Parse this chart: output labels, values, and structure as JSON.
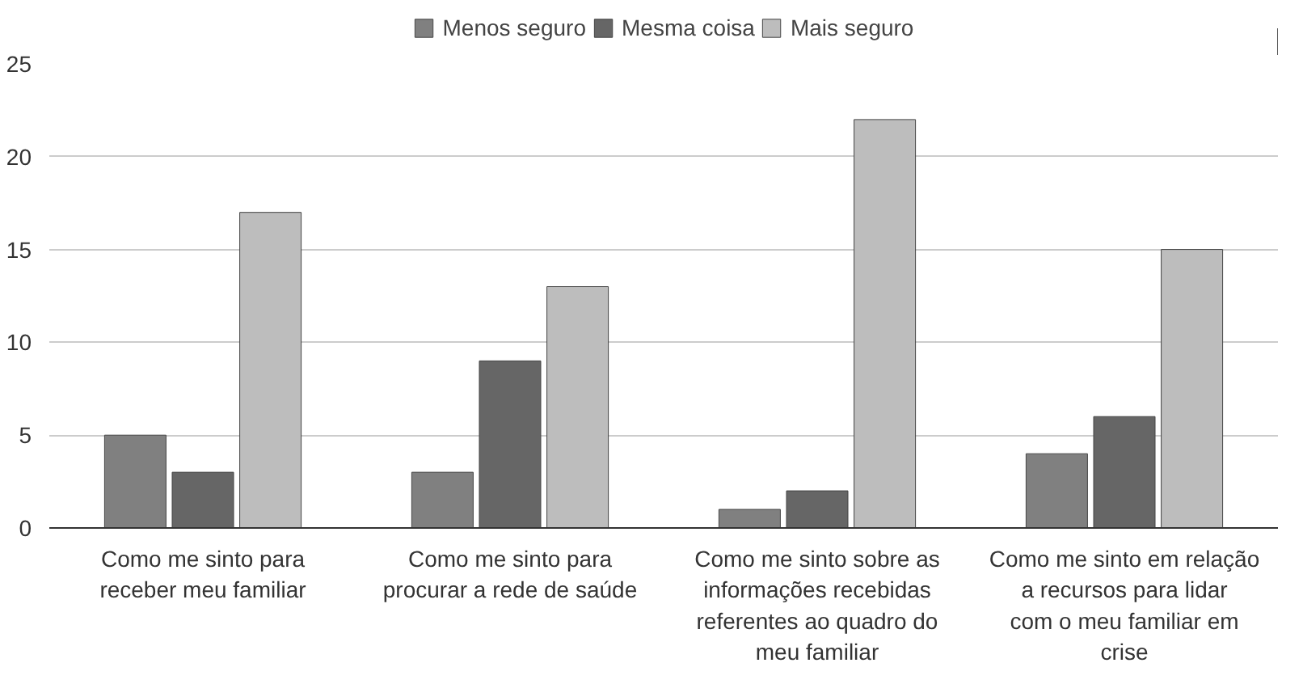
{
  "chart_data": {
    "type": "bar",
    "categories": [
      "Como me sinto para receber meu familiar",
      "Como me sinto para procurar a rede de saúde",
      "Como me sinto sobre as informações recebidas referentes ao quadro do meu familiar",
      "Como me sinto em relação a recursos para lidar com o meu familiar em crise"
    ],
    "series": [
      {
        "name": "Menos seguro",
        "color": "#808080",
        "values": [
          5,
          3,
          1,
          4
        ]
      },
      {
        "name": "Mesma coisa",
        "color": "#666666",
        "values": [
          3,
          9,
          2,
          6
        ]
      },
      {
        "name": "Mais seguro",
        "color": "#bdbdbd",
        "values": [
          17,
          13,
          22,
          15
        ]
      }
    ],
    "ylim": [
      0,
      25
    ],
    "yticks": [
      0,
      5,
      10,
      15,
      20,
      25
    ],
    "grid": "y",
    "legend": "top"
  }
}
